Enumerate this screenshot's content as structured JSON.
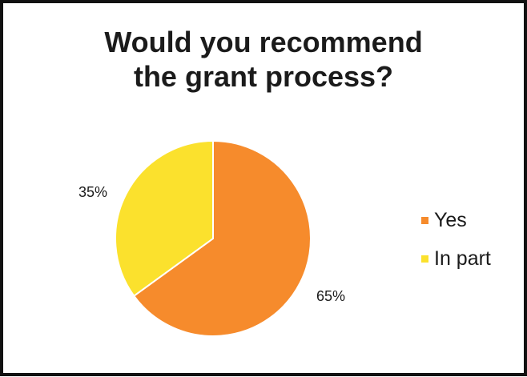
{
  "chart_data": {
    "type": "pie",
    "title_lines": [
      "Would you recommend",
      "the grant process?"
    ],
    "categories": [
      "Yes",
      "In part"
    ],
    "values": [
      65,
      35
    ],
    "data_labels": [
      "65%",
      "35%"
    ],
    "colors": [
      "#f68b2c",
      "#fbe12d"
    ],
    "legend_position": "right"
  }
}
